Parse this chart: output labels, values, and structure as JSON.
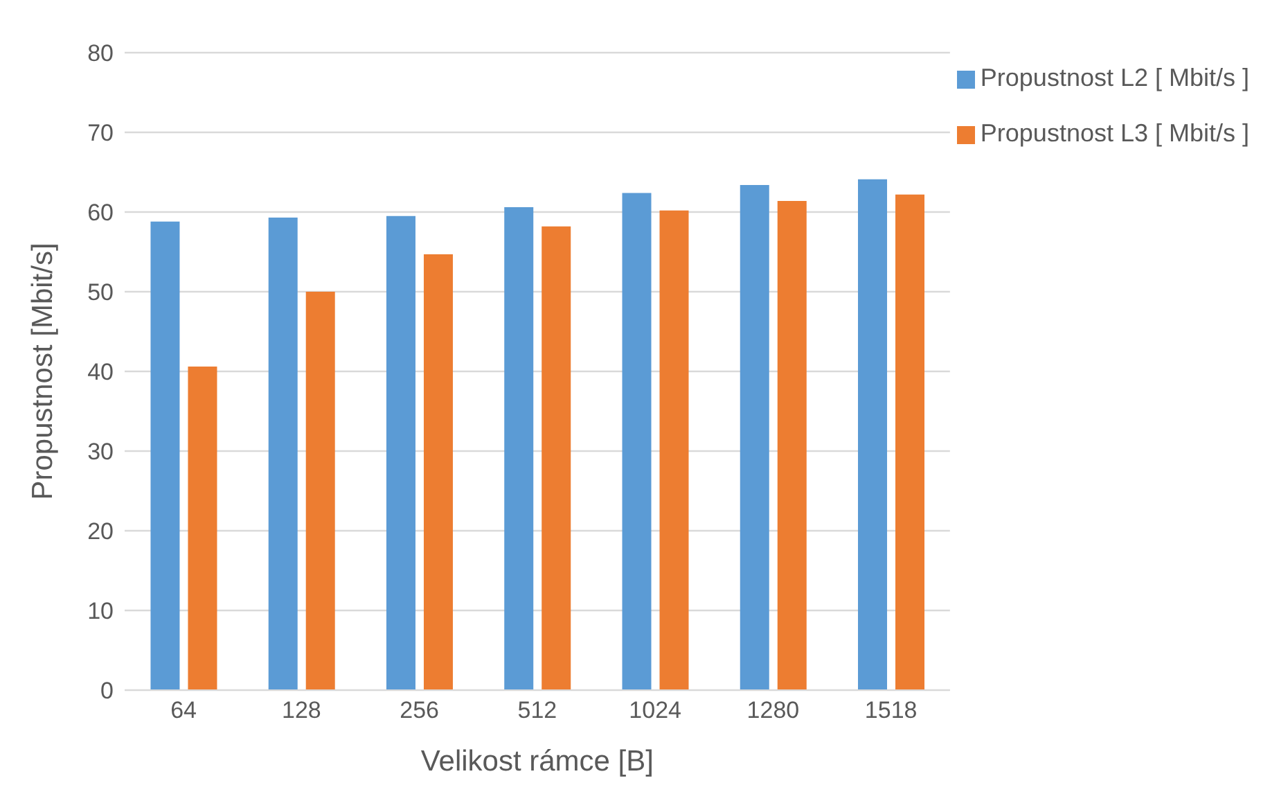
{
  "chart_data": {
    "type": "bar",
    "xlabel": "Velikost rámce [B]",
    "ylabel": "Propustnost [Mbit/s]",
    "categories": [
      "64",
      "128",
      "256",
      "512",
      "1024",
      "1280",
      "1518"
    ],
    "series": [
      {
        "name": "Propustnost L2 [ Mbit/s ]",
        "color": "#5b9bd5",
        "values": [
          58.8,
          59.3,
          59.5,
          60.6,
          62.4,
          63.4,
          64.1
        ]
      },
      {
        "name": "Propustnost L3 [ Mbit/s ]",
        "color": "#ed7d31",
        "values": [
          40.6,
          50.0,
          54.7,
          58.2,
          60.2,
          61.4,
          62.2
        ]
      }
    ],
    "ylim": [
      0,
      80
    ],
    "yticks": [
      0,
      10,
      20,
      30,
      40,
      50,
      60,
      70,
      80
    ],
    "grid": "y",
    "legend": "top right"
  }
}
